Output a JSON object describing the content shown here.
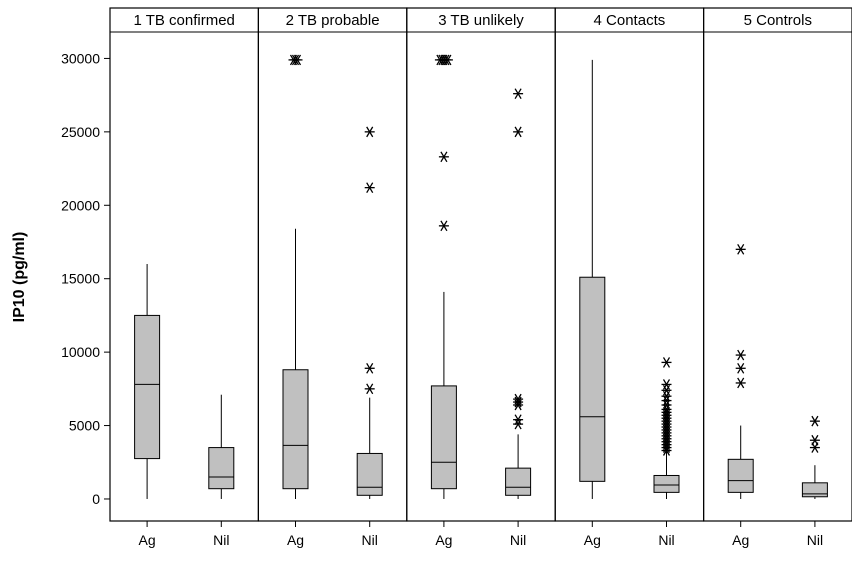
{
  "chart_data": {
    "type": "boxplot",
    "ylabel": "IP10 (pg/ml)",
    "ylim": [
      -1500,
      31800
    ],
    "yticks": [
      0,
      5000,
      10000,
      15000,
      20000,
      25000,
      30000
    ],
    "categories": [
      "Ag",
      "Nil"
    ],
    "panels": [
      {
        "title": "1 TB confirmed",
        "boxes": [
          {
            "category": "Ag",
            "min": 0,
            "q1": 2750,
            "median": 7800,
            "q3": 12500,
            "max": 16000,
            "outliers": []
          },
          {
            "category": "Nil",
            "min": 0,
            "q1": 700,
            "median": 1500,
            "q3": 3500,
            "max": 7100,
            "outliers": []
          }
        ]
      },
      {
        "title": "2 TB probable",
        "boxes": [
          {
            "category": "Ag",
            "min": 0,
            "q1": 700,
            "median": 3650,
            "q3": 8800,
            "max": 18400,
            "outliers": [
              29900,
              29900,
              29900
            ]
          },
          {
            "category": "Nil",
            "min": 0,
            "q1": 250,
            "median": 800,
            "q3": 3100,
            "max": 6900,
            "outliers": [
              7500,
              8900,
              21200,
              25000
            ]
          }
        ]
      },
      {
        "title": "3 TB unlikely",
        "boxes": [
          {
            "category": "Ag",
            "min": 0,
            "q1": 700,
            "median": 2500,
            "q3": 7700,
            "max": 14100,
            "outliers": [
              18600,
              23300,
              29900,
              29900,
              29900,
              29900,
              29900
            ]
          },
          {
            "category": "Nil",
            "min": 0,
            "q1": 250,
            "median": 800,
            "q3": 2100,
            "max": 4400,
            "outliers": [
              5100,
              5400,
              6400,
              6600,
              6800,
              25000,
              27600
            ]
          }
        ]
      },
      {
        "title": "4 Contacts",
        "boxes": [
          {
            "category": "Ag",
            "min": 0,
            "q1": 1200,
            "median": 5600,
            "q3": 15100,
            "max": 29900,
            "outliers": []
          },
          {
            "category": "Nil",
            "min": 0,
            "q1": 450,
            "median": 950,
            "q3": 1600,
            "max": 3200,
            "outliers": [
              3300,
              3500,
              3700,
              3900,
              4100,
              4300,
              4500,
              4700,
              4900,
              5100,
              5300,
              5500,
              5700,
              5900,
              6100,
              6400,
              6700,
              7000,
              7400,
              7800,
              9300
            ]
          }
        ]
      },
      {
        "title": "5 Controls",
        "boxes": [
          {
            "category": "Ag",
            "min": 0,
            "q1": 450,
            "median": 1250,
            "q3": 2700,
            "max": 5000,
            "outliers": [
              7900,
              8900,
              9800,
              17000
            ]
          },
          {
            "category": "Nil",
            "min": 0,
            "q1": 150,
            "median": 350,
            "q3": 1100,
            "max": 2300,
            "outliers": [
              3500,
              4000,
              5300
            ]
          }
        ]
      }
    ]
  }
}
